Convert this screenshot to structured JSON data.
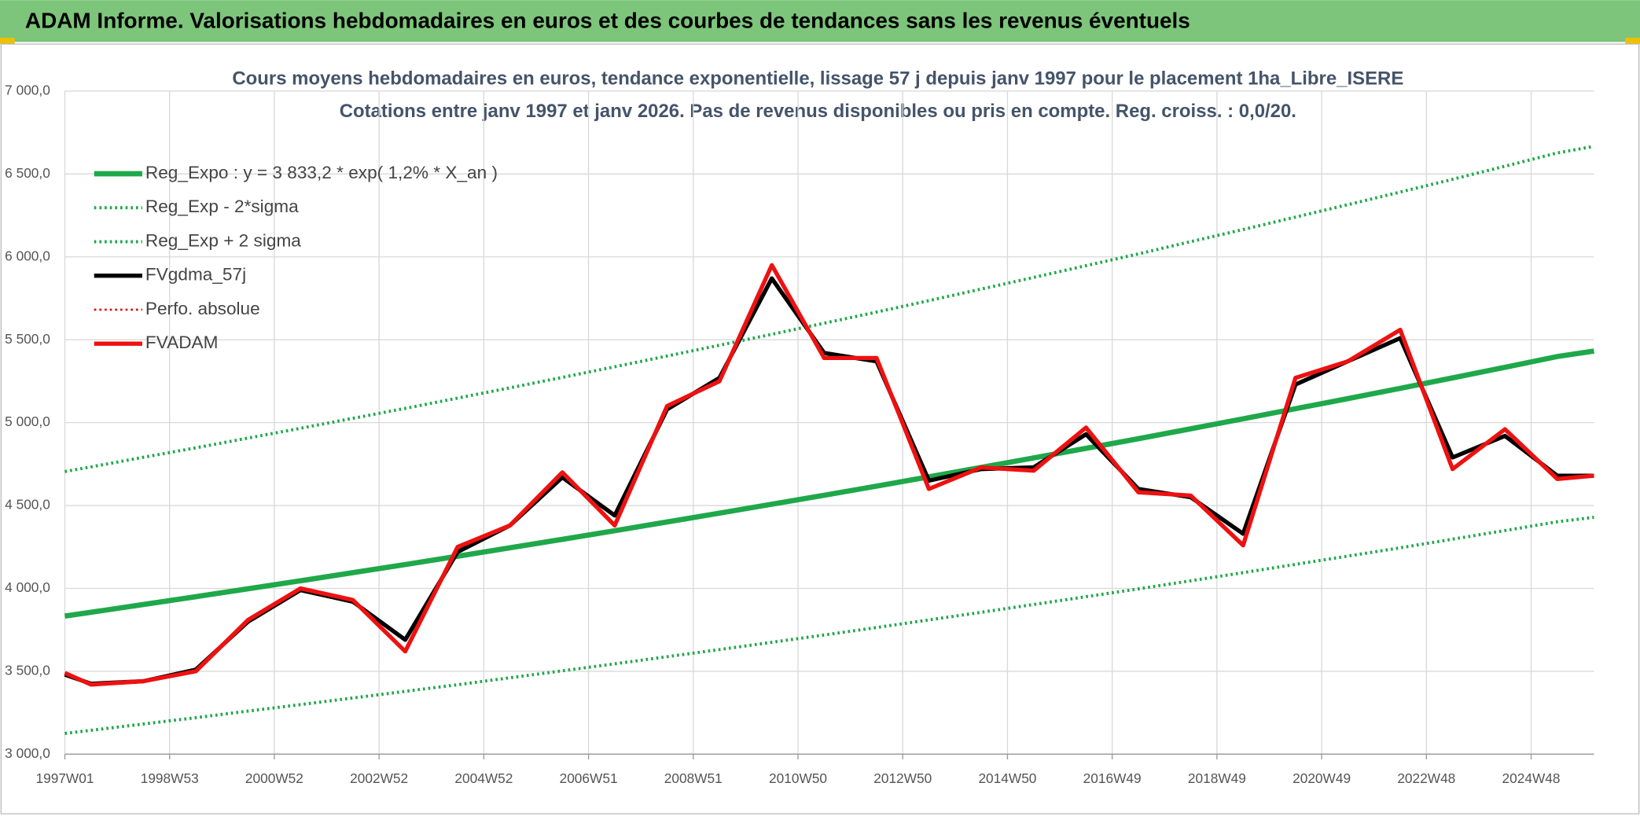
{
  "header": {
    "title": "ADAM Informe. Valorisations hebdomadaires en euros et des courbes de tendances sans les revenus éventuels"
  },
  "chart_data": {
    "type": "line",
    "title": "Cours moyens hebdomadaires en euros, tendance exponentielle, lissage 57 j depuis janv 1997 pour le placement 1ha_Libre_ISERE",
    "subtitle": "Cotations entre janv 1997 et janv 2026. Pas de revenus disponibles ou pris en compte. Reg. croiss. : 0,0/20.",
    "x": [
      1997,
      1997.5,
      1998.5,
      1999.5,
      2000.5,
      2001.5,
      2002.5,
      2003.5,
      2004.5,
      2005.5,
      2006.5,
      2007.5,
      2008.5,
      2009.5,
      2010.5,
      2011.5,
      2012.5,
      2013.5,
      2014.5,
      2015.5,
      2016.5,
      2017.5,
      2018.5,
      2019.5,
      2020.5,
      2021.5,
      2022.5,
      2023.5,
      2024.5,
      2025.5,
      2026.2
    ],
    "xlim": [
      1997,
      2026.2
    ],
    "xticks": [
      {
        "value": 1997,
        "label": "1997W01"
      },
      {
        "value": 1999,
        "label": "1998W53"
      },
      {
        "value": 2001,
        "label": "2000W52"
      },
      {
        "value": 2003,
        "label": "2002W52"
      },
      {
        "value": 2005,
        "label": "2004W52"
      },
      {
        "value": 2007,
        "label": "2006W51"
      },
      {
        "value": 2009,
        "label": "2008W51"
      },
      {
        "value": 2011,
        "label": "2010W50"
      },
      {
        "value": 2013,
        "label": "2012W50"
      },
      {
        "value": 2015,
        "label": "2014W50"
      },
      {
        "value": 2017,
        "label": "2016W49"
      },
      {
        "value": 2019,
        "label": "2018W49"
      },
      {
        "value": 2021,
        "label": "2020W49"
      },
      {
        "value": 2023,
        "label": "2022W48"
      },
      {
        "value": 2025,
        "label": "2024W48"
      }
    ],
    "ylim": [
      3000,
      7000
    ],
    "yticks": [
      {
        "value": 3000,
        "label": "3 000,0"
      },
      {
        "value": 3500,
        "label": "3 500,0"
      },
      {
        "value": 4000,
        "label": "4 000,0"
      },
      {
        "value": 4500,
        "label": "4 500,0"
      },
      {
        "value": 5000,
        "label": "5 000,0"
      },
      {
        "value": 5500,
        "label": "5 500,0"
      },
      {
        "value": 6000,
        "label": "6 000,0"
      },
      {
        "value": 6500,
        "label": "6 500,0"
      },
      {
        "value": 7000,
        "label": "7 000,0"
      }
    ],
    "grid": true,
    "legend": "top-left",
    "series": [
      {
        "name": "Reg_Expo : y = 3 833,2 * exp( 1,2% *  X_an )",
        "color": "#1fa84a",
        "style": "solid",
        "linewidth": 5,
        "values": [
          3833,
          3856,
          3903,
          3950,
          3998,
          4046,
          4095,
          4144,
          4194,
          4245,
          4296,
          4348,
          4401,
          4454,
          4508,
          4562,
          4617,
          4673,
          4730,
          4787,
          4845,
          4903,
          4963,
          5023,
          5084,
          5145,
          5207,
          5270,
          5334,
          5399,
          5432
        ]
      },
      {
        "name": "Reg_Exp - 2*sigma",
        "color": "#1fa84a",
        "style": "dotted",
        "linewidth": 3,
        "values": [
          3125,
          3144,
          3182,
          3220,
          3260,
          3299,
          3339,
          3379,
          3419,
          3461,
          3503,
          3545,
          3588,
          3631,
          3675,
          3719,
          3764,
          3810,
          3856,
          3903,
          3950,
          3997,
          4046,
          4095,
          4145,
          4195,
          4245,
          4297,
          4349,
          4402,
          4429
        ]
      },
      {
        "name": "Reg_Exp + 2 sigma",
        "color": "#1fa84a",
        "style": "dotted",
        "linewidth": 3,
        "values": [
          4705,
          4733,
          4791,
          4848,
          4907,
          4966,
          5026,
          5086,
          5148,
          5210,
          5273,
          5337,
          5402,
          5467,
          5533,
          5600,
          5667,
          5736,
          5806,
          5876,
          5947,
          6018,
          6092,
          6165,
          6240,
          6315,
          6391,
          6468,
          6547,
          6627,
          6667
        ]
      },
      {
        "name": "FVgdma_57j",
        "color": "#000000",
        "style": "solid",
        "linewidth": 4,
        "values": [
          3480,
          3425,
          3440,
          3510,
          3800,
          3990,
          3920,
          3690,
          4220,
          4380,
          4670,
          4440,
          5080,
          5270,
          5870,
          5420,
          5370,
          4650,
          4720,
          4730,
          4930,
          4600,
          4550,
          4330,
          5230,
          5370,
          5510,
          4790,
          4920,
          4680,
          4680
        ]
      },
      {
        "name": "Perfo. absolue",
        "color": "#e00000",
        "style": "dotted",
        "linewidth": 2,
        "values": [
          3490,
          3420,
          3440,
          3500,
          3810,
          4000,
          3930,
          3620,
          4250,
          4380,
          4700,
          4380,
          5100,
          5250,
          5950,
          5390,
          5390,
          4600,
          4730,
          4710,
          4970,
          4580,
          4560,
          4260,
          5270,
          5370,
          5560,
          4720,
          4960,
          4660,
          4680
        ]
      },
      {
        "name": "FVADAM",
        "color": "#ee1111",
        "style": "solid",
        "linewidth": 4,
        "values": [
          3490,
          3420,
          3440,
          3500,
          3810,
          4000,
          3930,
          3620,
          4250,
          4380,
          4700,
          4380,
          5100,
          5250,
          5950,
          5390,
          5390,
          4600,
          4730,
          4710,
          4970,
          4580,
          4560,
          4260,
          5270,
          5370,
          5560,
          4720,
          4960,
          4660,
          4680
        ]
      }
    ]
  }
}
